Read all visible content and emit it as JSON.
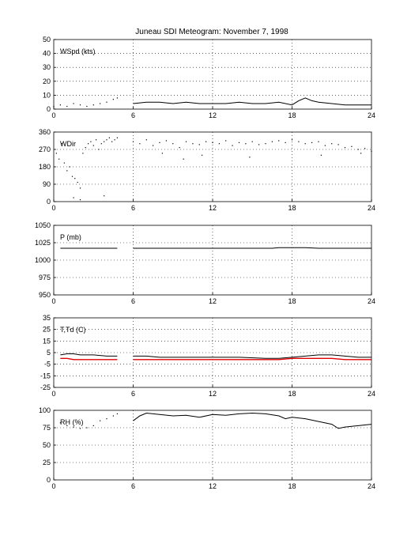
{
  "title": "Juneau SDI Meteogram:  November  7, 1998",
  "colors": {
    "black": "#000000",
    "red": "#e00000"
  },
  "chart_data": [
    {
      "type": "line",
      "label": "WSpd (kts)",
      "xlim": [
        0,
        24
      ],
      "xticks": [
        "0",
        "6",
        "12",
        "18",
        "24"
      ],
      "ylim": [
        0,
        50
      ],
      "yticks": [
        "0",
        "10",
        "20",
        "30",
        "40",
        "50"
      ],
      "grid": true,
      "series": [
        {
          "color": "#000000",
          "style": "points",
          "x": [
            0,
            0.5,
            1,
            1.5,
            2,
            2.5,
            3,
            3.5,
            4,
            4.5,
            4.8
          ],
          "y": [
            2,
            3,
            2,
            4,
            3,
            2,
            3,
            4,
            5,
            7,
            8
          ]
        },
        {
          "color": "#000000",
          "style": "line",
          "x": [
            6,
            7,
            8,
            9,
            10,
            11,
            12,
            13,
            14,
            15,
            16,
            17,
            18,
            18.5,
            19,
            19.5,
            20,
            21,
            22,
            23,
            24
          ],
          "y": [
            4,
            5,
            5,
            4,
            5,
            4,
            4,
            4,
            5,
            4,
            4,
            5,
            3,
            6,
            8,
            6,
            5,
            4,
            3,
            3,
            3
          ]
        }
      ]
    },
    {
      "type": "scatter",
      "label": "WDir",
      "xlim": [
        0,
        24
      ],
      "xticks": [
        "0",
        "6",
        "12",
        "18",
        "24"
      ],
      "ylim": [
        0,
        360
      ],
      "yticks": [
        "0",
        "90",
        "180",
        "270",
        "360"
      ],
      "grid": true,
      "series": [
        {
          "color": "#000000",
          "style": "points",
          "x": [
            0.2,
            0.4,
            0.6,
            0.8,
            1.0,
            1.2,
            1.4,
            1.6,
            1.8,
            2.0,
            2.2,
            2.4,
            2.6,
            2.8,
            3.0,
            3.2,
            3.4,
            3.6,
            3.8,
            4.0,
            4.2,
            4.4,
            4.6,
            4.8,
            1.5,
            2.0,
            3.8
          ],
          "y": [
            250,
            220,
            300,
            200,
            160,
            180,
            130,
            120,
            100,
            70,
            250,
            280,
            300,
            310,
            290,
            320,
            270,
            300,
            310,
            320,
            330,
            310,
            320,
            330,
            20,
            10,
            30
          ]
        },
        {
          "color": "#000000",
          "style": "points",
          "x": [
            6,
            6.5,
            7,
            7.5,
            8,
            8.5,
            9,
            9.5,
            10,
            10.5,
            11,
            11.5,
            12,
            12.5,
            13,
            13.5,
            14,
            14.5,
            15,
            15.5,
            16,
            16.5,
            17,
            17.5,
            18,
            18.5,
            19,
            19.5,
            20,
            20.5,
            21,
            21.5,
            22,
            22.5,
            23,
            23.5,
            24,
            8.2,
            9.8,
            11.2,
            14.8,
            20.2,
            23.2
          ],
          "y": [
            310,
            300,
            320,
            290,
            305,
            315,
            300,
            280,
            310,
            300,
            295,
            310,
            305,
            300,
            315,
            290,
            305,
            300,
            310,
            295,
            300,
            310,
            315,
            305,
            320,
            310,
            300,
            305,
            310,
            290,
            300,
            295,
            280,
            285,
            270,
            275,
            260,
            250,
            220,
            240,
            230,
            240,
            250
          ]
        }
      ]
    },
    {
      "type": "line",
      "label": "P (mb)",
      "xlim": [
        0,
        24
      ],
      "xticks": [
        "0",
        "6",
        "12",
        "18",
        "24"
      ],
      "ylim": [
        950,
        1050
      ],
      "yticks": [
        "950",
        "975",
        "1000",
        "1025",
        "1050"
      ],
      "grid": true,
      "series": [
        {
          "color": "#000000",
          "style": "line",
          "x": [
            0.5,
            2,
            4,
            4.8
          ],
          "y": [
            1017,
            1017,
            1017,
            1017
          ]
        },
        {
          "color": "#000000",
          "style": "line",
          "x": [
            6,
            10,
            14,
            16.5,
            17,
            19,
            20,
            24
          ],
          "y": [
            1017,
            1017,
            1017,
            1017,
            1018,
            1018,
            1017,
            1017
          ]
        }
      ]
    },
    {
      "type": "line",
      "label": "T,Td (C)",
      "xlim": [
        0,
        24
      ],
      "xticks": [
        "0",
        "6",
        "12",
        "18",
        "24"
      ],
      "ylim": [
        -25,
        35
      ],
      "yticks": [
        "-25",
        "-15",
        "-5",
        "5",
        "15",
        "25",
        "35"
      ],
      "grid": true,
      "series": [
        {
          "color": "#000000",
          "style": "line",
          "x": [
            0.5,
            1,
            1.5,
            2,
            3,
            4,
            4.8
          ],
          "y": [
            3,
            4,
            4,
            3,
            3,
            2,
            2
          ]
        },
        {
          "color": "#000000",
          "style": "line",
          "x": [
            6,
            7,
            8,
            10,
            12,
            14,
            16,
            17,
            18,
            19,
            20,
            21,
            22,
            23,
            24
          ],
          "y": [
            2,
            2,
            1,
            1,
            1,
            1,
            0,
            0,
            1,
            2,
            3,
            3,
            2,
            1,
            1
          ]
        },
        {
          "color": "#e00000",
          "style": "line",
          "x": [
            0.5,
            1,
            1.5,
            2,
            3,
            4,
            4.8
          ],
          "y": [
            0,
            0,
            -1,
            -1,
            -1,
            -1,
            -1
          ]
        },
        {
          "color": "#e00000",
          "style": "line",
          "x": [
            6,
            7,
            8,
            10,
            12,
            14,
            16,
            17,
            18,
            19,
            20,
            21,
            22,
            23,
            24
          ],
          "y": [
            -1,
            -1,
            -1,
            -1,
            -1,
            -1,
            -1,
            -1,
            0,
            0,
            0,
            0,
            -1,
            -1,
            -1
          ]
        }
      ]
    },
    {
      "type": "line",
      "label": "RH (%)",
      "xlim": [
        0,
        24
      ],
      "xticks": [
        "0",
        "6",
        "12",
        "18",
        "24"
      ],
      "ylim": [
        0,
        100
      ],
      "yticks": [
        "0",
        "25",
        "50",
        "75",
        "100"
      ],
      "grid": true,
      "series": [
        {
          "color": "#000000",
          "style": "points",
          "x": [
            0.5,
            1,
            1.5,
            2,
            2.5,
            3,
            3.5,
            4,
            4.5,
            4.8
          ],
          "y": [
            82,
            78,
            76,
            74,
            75,
            78,
            85,
            88,
            92,
            95
          ]
        },
        {
          "color": "#000000",
          "style": "line",
          "x": [
            6,
            6.5,
            7,
            8,
            9,
            10,
            11,
            12,
            13,
            14,
            15,
            16,
            17,
            17.5,
            18,
            19,
            20,
            21,
            21.5,
            22,
            23,
            24
          ],
          "y": [
            85,
            92,
            96,
            94,
            92,
            93,
            90,
            94,
            93,
            95,
            96,
            95,
            92,
            88,
            90,
            88,
            84,
            80,
            74,
            76,
            78,
            80
          ]
        }
      ]
    }
  ]
}
